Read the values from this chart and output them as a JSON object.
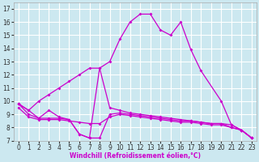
{
  "xlabel": "Windchill (Refroidissement éolien,°C)",
  "background_color": "#cce8f0",
  "grid_color": "#ffffff",
  "line_color": "#cc00cc",
  "xlim": [
    -0.5,
    23.5
  ],
  "ylim": [
    7,
    17.5
  ],
  "xticks": [
    0,
    1,
    2,
    3,
    4,
    5,
    6,
    7,
    8,
    9,
    10,
    11,
    12,
    13,
    14,
    15,
    16,
    17,
    18,
    19,
    20,
    21,
    22,
    23
  ],
  "yticks": [
    7,
    8,
    9,
    10,
    11,
    12,
    13,
    14,
    15,
    16,
    17
  ],
  "series": [
    {
      "x": [
        0,
        1,
        2,
        3,
        4,
        5,
        6,
        7,
        8,
        9,
        10,
        11,
        12,
        13,
        14,
        15,
        16,
        17,
        18,
        20,
        21,
        22,
        23
      ],
      "y": [
        9.8,
        9.3,
        10.0,
        10.5,
        11.0,
        11.5,
        12.0,
        12.5,
        12.5,
        13.0,
        14.7,
        16.0,
        16.6,
        16.6,
        15.4,
        15.0,
        16.0,
        13.9,
        12.3,
        10.0,
        8.2,
        7.8,
        7.2
      ]
    },
    {
      "x": [
        0,
        1,
        2,
        3,
        4,
        5,
        6,
        7,
        8,
        9,
        10,
        11,
        12,
        13,
        14,
        15,
        16,
        17,
        18,
        19,
        20,
        21,
        22,
        23
      ],
      "y": [
        9.8,
        9.3,
        8.7,
        9.3,
        8.8,
        8.6,
        7.5,
        7.2,
        12.5,
        9.5,
        9.3,
        9.1,
        9.0,
        8.9,
        8.8,
        8.7,
        8.6,
        8.5,
        8.4,
        8.3,
        8.3,
        8.2,
        7.8,
        7.2
      ]
    },
    {
      "x": [
        0,
        1,
        2,
        3,
        4,
        5,
        6,
        7,
        8,
        9,
        10,
        11,
        12,
        13,
        14,
        15,
        16,
        17,
        18,
        19,
        20,
        21,
        22,
        23
      ],
      "y": [
        9.8,
        9.0,
        8.7,
        8.7,
        8.7,
        8.6,
        7.5,
        7.2,
        7.2,
        9.0,
        9.1,
        9.0,
        8.9,
        8.8,
        8.7,
        8.6,
        8.5,
        8.5,
        8.4,
        8.3,
        8.3,
        8.0,
        7.8,
        7.2
      ]
    },
    {
      "x": [
        0,
        1,
        2,
        3,
        4,
        5,
        6,
        7,
        8,
        9,
        10,
        11,
        12,
        13,
        14,
        15,
        16,
        17,
        18,
        19,
        20,
        21,
        22,
        23
      ],
      "y": [
        9.5,
        8.8,
        8.6,
        8.6,
        8.6,
        8.5,
        8.4,
        8.3,
        8.3,
        8.8,
        9.0,
        8.9,
        8.8,
        8.7,
        8.6,
        8.5,
        8.4,
        8.4,
        8.3,
        8.2,
        8.2,
        8.0,
        7.8,
        7.2
      ]
    }
  ]
}
